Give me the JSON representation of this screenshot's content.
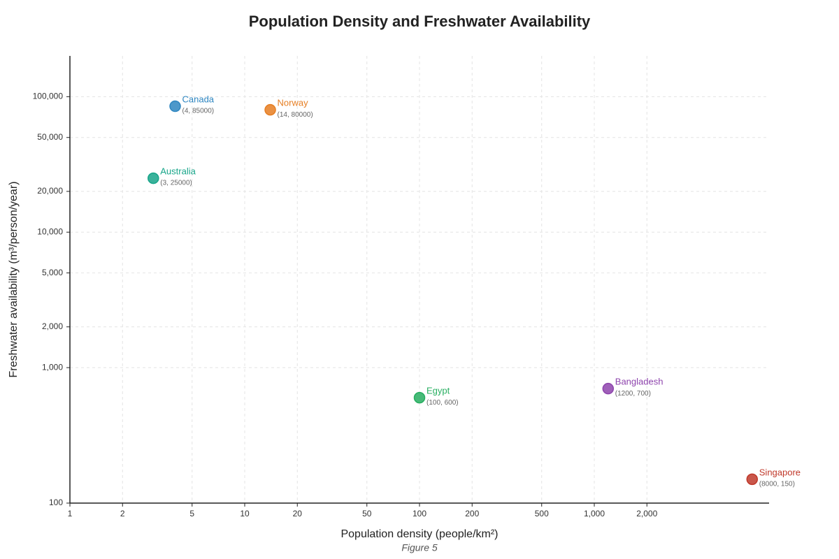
{
  "chart_data": {
    "type": "scatter",
    "title": "Population Density and Freshwater Availability",
    "x_label": "Population density (people/km²)",
    "y_label": "Freshwater availability (m³/person/year)",
    "caption": "Figure 5",
    "x_scale": "log",
    "y_scale": "log",
    "grid": true,
    "xlim": [
      1,
      10000
    ],
    "ylim": [
      100,
      200000
    ],
    "xticks": [
      1,
      2,
      5,
      10,
      20,
      50,
      100,
      200,
      500,
      {
        "value": 1000,
        "label": "1,000"
      },
      {
        "value": 2000,
        "label": "2,000"
      }
    ],
    "yticks": [
      100,
      {
        "value": 1000,
        "label": "1,000"
      },
      {
        "value": 2000,
        "label": "2,000"
      },
      {
        "value": 5000,
        "label": "5,000"
      },
      {
        "value": 10000,
        "label": "10,000"
      },
      {
        "value": 20000,
        "label": "20,000"
      },
      {
        "value": 50000,
        "label": "50,000"
      },
      {
        "value": 100000,
        "label": "100,000"
      }
    ],
    "series": [
      {
        "name": "Canada",
        "color": "#2e86c1",
        "x": [
          4
        ],
        "values": [
          85000
        ],
        "value_labels": [
          "(4, 85000)"
        ]
      },
      {
        "name": "Norway",
        "color": "#e67e22",
        "x": [
          14
        ],
        "values": [
          80000
        ],
        "value_labels": [
          "(14, 80000)"
        ]
      },
      {
        "name": "Australia",
        "color": "#17a589",
        "x": [
          3
        ],
        "values": [
          25000
        ],
        "value_labels": [
          "(3, 25000)"
        ]
      },
      {
        "name": "Egypt",
        "color": "#27ae60",
        "x": [
          100
        ],
        "values": [
          600
        ],
        "value_labels": [
          "(100, 600)"
        ]
      },
      {
        "name": "Bangladesh",
        "color": "#8e44ad",
        "x": [
          1200
        ],
        "values": [
          700
        ],
        "value_labels": [
          "(1200, 700)"
        ]
      },
      {
        "name": "Singapore",
        "color": "#c0392b",
        "x": [
          8000
        ],
        "values": [
          150
        ],
        "value_labels": [
          "(8000, 150)"
        ]
      }
    ]
  }
}
